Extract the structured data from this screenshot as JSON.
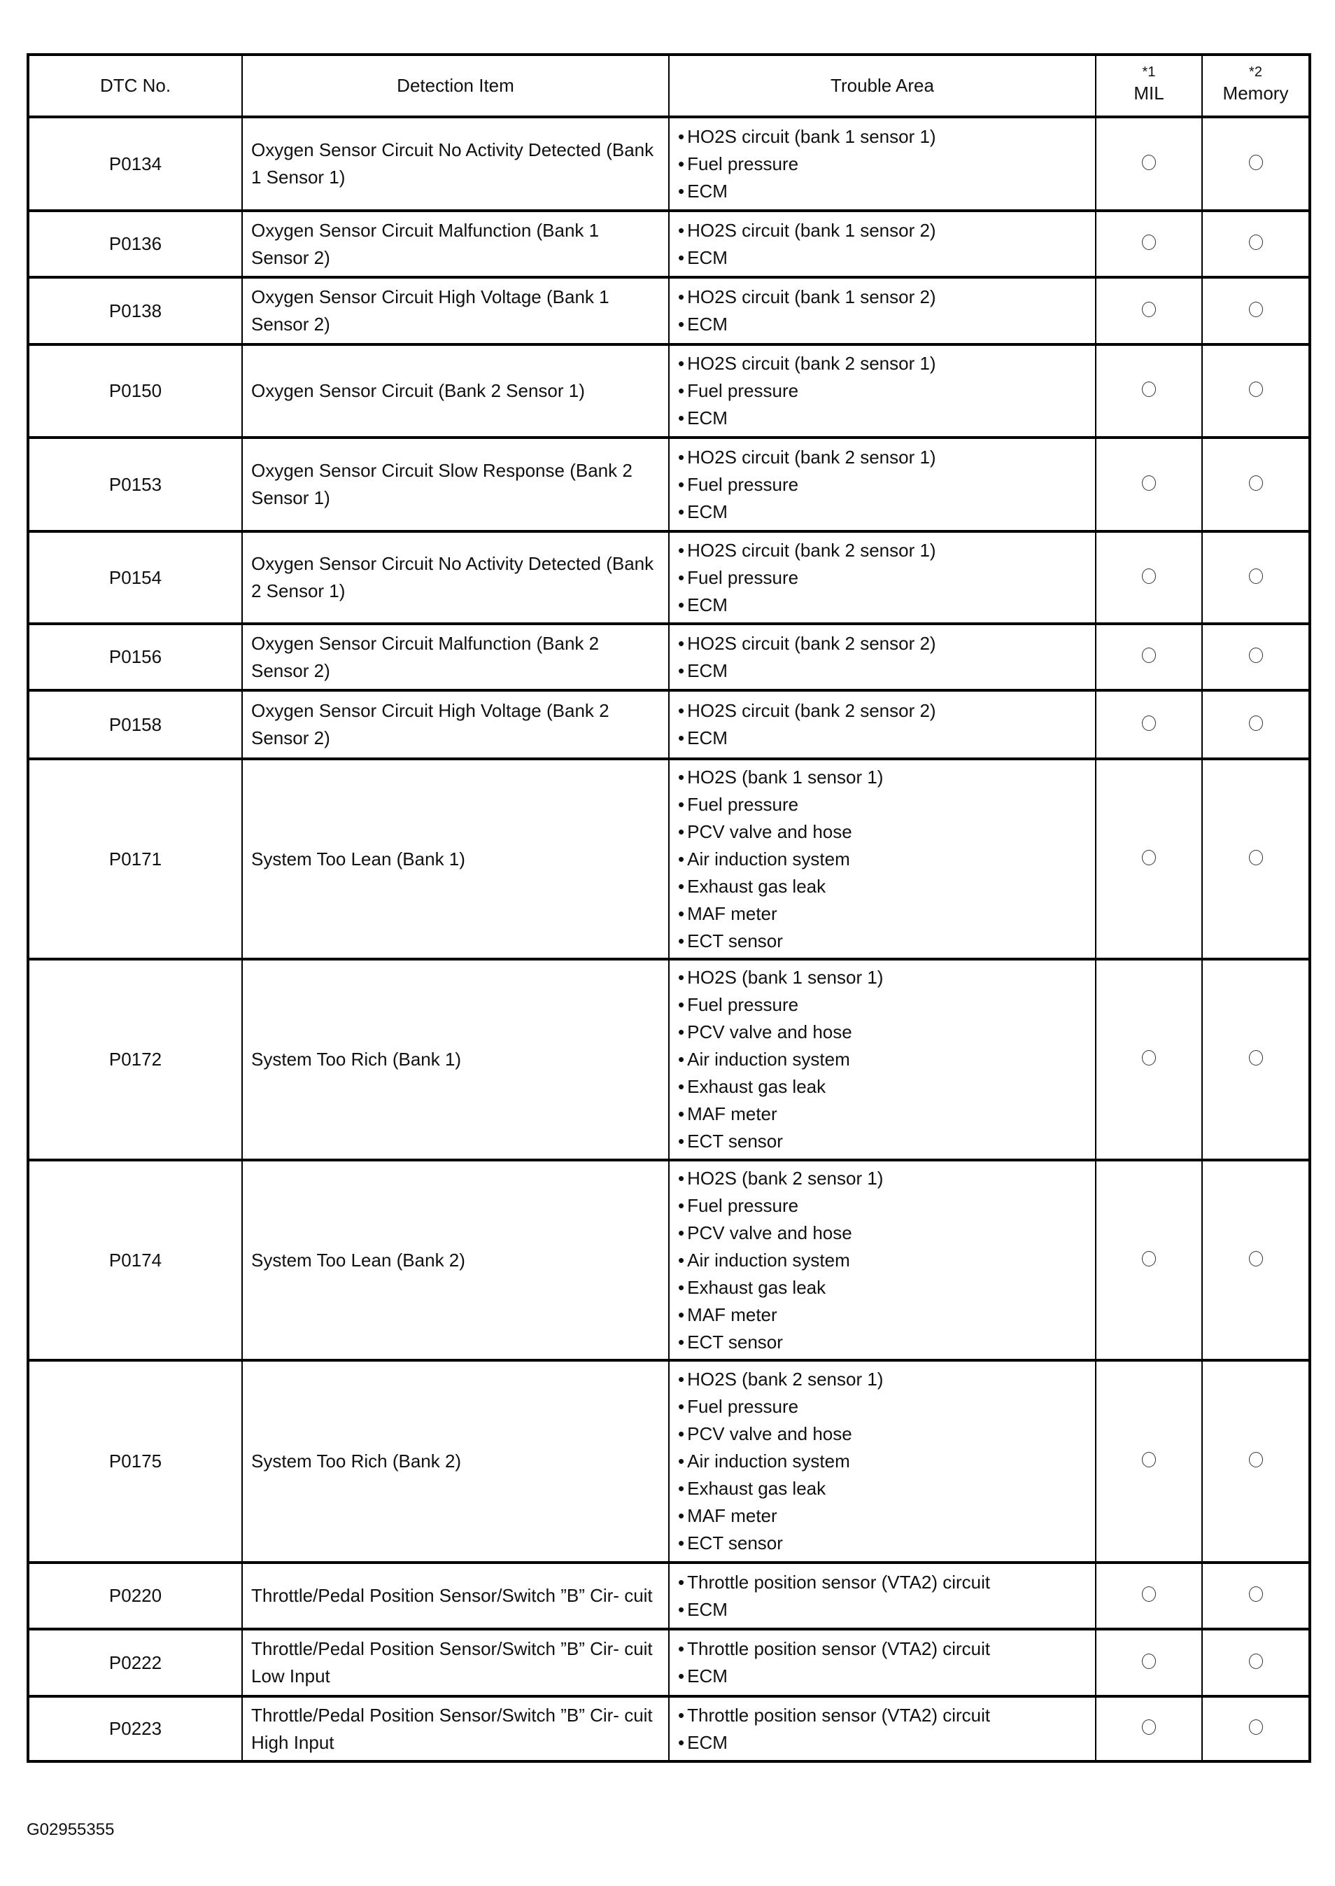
{
  "headers": {
    "dtc": "DTC No.",
    "detection": "Detection Item",
    "trouble": "Trouble Area",
    "mil_note": "*1",
    "mil": "MIL",
    "memory_note": "*2",
    "memory": "Memory"
  },
  "rows": [
    {
      "dtc": "P0134",
      "detection": "Oxygen Sensor Circuit No Activity Detected (Bank 1 Sensor 1)",
      "trouble": [
        "HO2S circuit (bank 1 sensor 1)",
        "Fuel pressure",
        "ECM"
      ],
      "mil": "○",
      "memory": "○"
    },
    {
      "dtc": "P0136",
      "detection": "Oxygen Sensor Circuit Malfunction (Bank 1 Sensor 2)",
      "trouble": [
        "HO2S circuit (bank 1 sensor 2)",
        "ECM"
      ],
      "mil": "○",
      "memory": "○"
    },
    {
      "dtc": "P0138",
      "detection": "Oxygen Sensor Circuit High Voltage (Bank 1 Sensor 2)",
      "trouble": [
        "HO2S circuit (bank 1 sensor 2)",
        "ECM"
      ],
      "mil": "○",
      "memory": "○"
    },
    {
      "dtc": "P0150",
      "detection": "Oxygen Sensor Circuit (Bank 2 Sensor 1)",
      "trouble": [
        "HO2S circuit (bank 2 sensor 1)",
        "Fuel pressure",
        "ECM"
      ],
      "mil": "○",
      "memory": "○"
    },
    {
      "dtc": "P0153",
      "detection": "Oxygen Sensor Circuit Slow Response (Bank 2 Sensor 1)",
      "trouble": [
        "HO2S circuit (bank 2 sensor 1)",
        "Fuel pressure",
        "ECM"
      ],
      "mil": "○",
      "memory": "○"
    },
    {
      "dtc": "P0154",
      "detection": "Oxygen Sensor Circuit No Activity Detected (Bank 2 Sensor 1)",
      "trouble": [
        "HO2S circuit (bank 2 sensor 1)",
        "Fuel pressure",
        "ECM"
      ],
      "mil": "○",
      "memory": "○"
    },
    {
      "dtc": "P0156",
      "detection": "Oxygen Sensor Circuit Malfunction (Bank 2 Sensor 2)",
      "trouble": [
        "HO2S circuit (bank 2 sensor 2)",
        "ECM"
      ],
      "mil": "○",
      "memory": "○"
    },
    {
      "dtc": "P0158",
      "detection": "Oxygen Sensor Circuit High Voltage (Bank 2 Sensor 2)",
      "trouble": [
        "HO2S circuit (bank 2 sensor 2)",
        "ECM"
      ],
      "mil": "○",
      "memory": "○"
    },
    {
      "dtc": "P0171",
      "detection": "System Too Lean (Bank 1)",
      "trouble": [
        "HO2S (bank 1 sensor 1)",
        "Fuel pressure",
        "PCV valve and hose",
        "Air induction system",
        "Exhaust gas leak",
        "MAF meter",
        "ECT sensor"
      ],
      "mil": "○",
      "memory": "○"
    },
    {
      "dtc": "P0172",
      "detection": "System Too Rich (Bank 1)",
      "trouble": [
        "HO2S (bank 1 sensor 1)",
        "Fuel pressure",
        "PCV valve and hose",
        "Air induction system",
        "Exhaust gas leak",
        "MAF meter",
        "ECT sensor"
      ],
      "mil": "○",
      "memory": "○"
    },
    {
      "dtc": "P0174",
      "detection": "System Too Lean (Bank 2)",
      "trouble": [
        "HO2S (bank 2 sensor 1)",
        "Fuel pressure",
        "PCV valve and hose",
        "Air induction system",
        "Exhaust gas leak",
        "MAF meter",
        "ECT sensor"
      ],
      "mil": "○",
      "memory": "○"
    },
    {
      "dtc": "P0175",
      "detection": "System Too Rich (Bank 2)",
      "trouble": [
        "HO2S (bank 2 sensor 1)",
        "Fuel pressure",
        "PCV valve and hose",
        "Air induction system",
        "Exhaust gas leak",
        "MAF meter",
        "ECT sensor"
      ],
      "mil": "○",
      "memory": "○"
    },
    {
      "dtc": "P0220",
      "detection": "Throttle/Pedal Position Sensor/Switch ”B” Cir- cuit",
      "trouble": [
        "Throttle position sensor (VTA2) circuit",
        "ECM"
      ],
      "mil": "○",
      "memory": "○"
    },
    {
      "dtc": "P0222",
      "detection": "Throttle/Pedal Position Sensor/Switch ”B” Cir- cuit Low Input",
      "trouble": [
        "Throttle position sensor (VTA2) circuit",
        "ECM"
      ],
      "mil": "○",
      "memory": "○"
    },
    {
      "dtc": "P0223",
      "detection": "Throttle/Pedal Position Sensor/Switch ”B” Cir- cuit High Input",
      "trouble": [
        "Throttle position sensor (VTA2) circuit",
        "ECM"
      ],
      "mil": "○",
      "memory": "○"
    }
  ],
  "figure_code": "G02955355"
}
